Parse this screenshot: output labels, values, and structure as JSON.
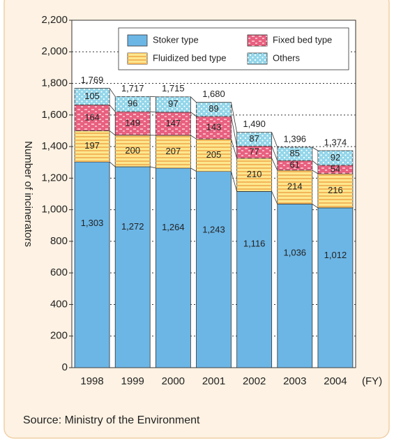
{
  "chart_data": {
    "type": "stacked_bar",
    "y_label": "Number of incinerators",
    "x_unit": "(FY)",
    "source": "Source: Ministry of the Environment",
    "categories": [
      "1998",
      "1999",
      "2000",
      "2001",
      "2002",
      "2003",
      "2004"
    ],
    "series": [
      {
        "name": "Stoker type",
        "color": "#6cb6e6",
        "pattern": "none",
        "values": [
          1303,
          1272,
          1264,
          1243,
          1116,
          1036,
          1012
        ],
        "value_labels": [
          "1,303",
          "1,272",
          "1,264",
          "1,243",
          "1,116",
          "1,036",
          "1,012"
        ]
      },
      {
        "name": "Fluidized bed type",
        "color": "#fde78e",
        "pattern": "stripes",
        "values": [
          197,
          200,
          207,
          205,
          210,
          214,
          216
        ]
      },
      {
        "name": "Fixed bed type",
        "color": "#e8607f",
        "pattern": "dashes",
        "values": [
          164,
          149,
          147,
          143,
          77,
          61,
          54
        ]
      },
      {
        "name": "Others",
        "color": "#93d6ea",
        "pattern": "dots",
        "values": [
          105,
          96,
          97,
          89,
          87,
          85,
          92
        ]
      }
    ],
    "totals": [
      1769,
      1717,
      1715,
      1680,
      1490,
      1396,
      1374
    ],
    "total_labels": [
      "1,769",
      "1,717",
      "1,715",
      "1,680",
      "1,490",
      "1,396",
      "1,374"
    ],
    "ylim": [
      0,
      2200
    ],
    "yticks": [
      0,
      200,
      400,
      600,
      800,
      {
        "value": 1000,
        "label": "1,000"
      },
      {
        "value": 1200,
        "label": "1,200"
      },
      {
        "value": 1400,
        "label": "1,400"
      },
      {
        "value": 1600,
        "label": "1,600"
      },
      {
        "value": 1800,
        "label": "1,800"
      },
      {
        "value": 2000,
        "label": "2,000"
      },
      {
        "value": 2200,
        "label": "2,200"
      }
    ],
    "grid": true
  }
}
